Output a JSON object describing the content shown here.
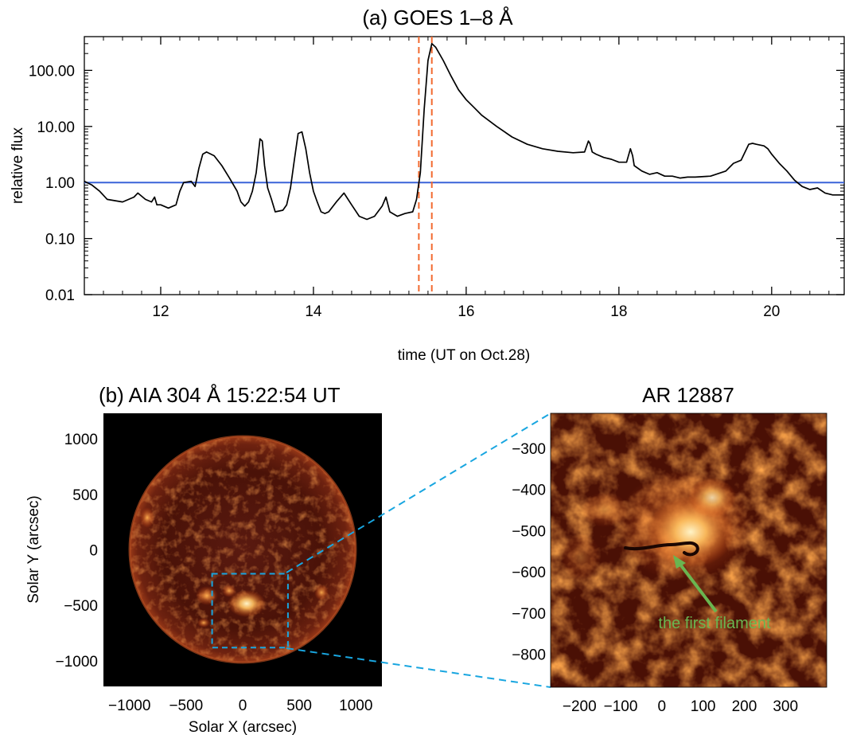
{
  "chart_data": [
    {
      "panel": "a",
      "type": "line",
      "title": "(a)   GOES 1–8 Å",
      "xlabel": "time (UT on Oct.28)",
      "ylabel": "relative flux",
      "y_scale": "log",
      "xlim": [
        11.0,
        20.95
      ],
      "ylim": [
        0.01,
        400
      ],
      "x_ticks": [
        12,
        14,
        16,
        18,
        20
      ],
      "y_ticks": [
        0.01,
        0.1,
        1,
        10,
        100
      ],
      "y_tick_labels": [
        "0.01",
        "0.10",
        "1.00",
        "10.00",
        "100.00"
      ],
      "reference_line": {
        "y": 1.0,
        "color": "#3a63d8"
      },
      "vlines": [
        {
          "x": 15.38,
          "color": "#f26a30",
          "style": "dashed"
        },
        {
          "x": 15.55,
          "color": "#f26a30",
          "style": "dashed"
        }
      ],
      "grid": false,
      "series": [
        {
          "color": "#000000",
          "x": [
            11.0,
            11.1,
            11.2,
            11.3,
            11.5,
            11.65,
            11.7,
            11.8,
            11.88,
            11.92,
            11.95,
            12.0,
            12.1,
            12.2,
            12.25,
            12.3,
            12.4,
            12.45,
            12.5,
            12.55,
            12.6,
            12.7,
            12.8,
            12.9,
            13.0,
            13.05,
            13.1,
            13.15,
            13.2,
            13.25,
            13.3,
            13.33,
            13.36,
            13.4,
            13.45,
            13.5,
            13.6,
            13.65,
            13.7,
            13.75,
            13.8,
            13.85,
            13.9,
            13.95,
            14.0,
            14.05,
            14.1,
            14.15,
            14.2,
            14.3,
            14.4,
            14.5,
            14.6,
            14.7,
            14.8,
            14.9,
            14.95,
            15.0,
            15.1,
            15.2,
            15.3,
            15.35,
            15.4,
            15.45,
            15.5,
            15.55,
            15.6,
            15.7,
            15.8,
            15.9,
            16.0,
            16.1,
            16.2,
            16.4,
            16.6,
            16.8,
            17.0,
            17.2,
            17.4,
            17.55,
            17.6,
            17.62,
            17.65,
            17.7,
            17.8,
            17.9,
            18.0,
            18.1,
            18.15,
            18.18,
            18.2,
            18.3,
            18.4,
            18.5,
            18.6,
            18.7,
            18.8,
            18.9,
            19.0,
            19.2,
            19.4,
            19.5,
            19.6,
            19.7,
            19.75,
            19.8,
            19.9,
            19.95,
            20.0,
            20.1,
            20.2,
            20.3,
            20.4,
            20.5,
            20.6,
            20.7,
            20.8,
            20.95
          ],
          "y": [
            1.05,
            0.9,
            0.7,
            0.5,
            0.45,
            0.55,
            0.65,
            0.5,
            0.45,
            0.55,
            0.4,
            0.4,
            0.35,
            0.4,
            0.7,
            1.0,
            1.05,
            0.85,
            1.8,
            3.2,
            3.5,
            3.0,
            2.0,
            1.2,
            0.7,
            0.45,
            0.38,
            0.45,
            0.7,
            1.5,
            6.0,
            5.5,
            2.0,
            0.8,
            0.5,
            0.3,
            0.32,
            0.4,
            0.8,
            2.5,
            7.5,
            8.0,
            4.0,
            1.5,
            0.7,
            0.45,
            0.3,
            0.28,
            0.3,
            0.45,
            0.65,
            0.4,
            0.25,
            0.22,
            0.25,
            0.38,
            0.55,
            0.3,
            0.25,
            0.28,
            0.3,
            0.5,
            1.5,
            20.0,
            150.0,
            300.0,
            260.0,
            150.0,
            80.0,
            45.0,
            30.0,
            22.0,
            16.0,
            10.0,
            6.5,
            4.8,
            4.0,
            3.6,
            3.4,
            3.5,
            5.5,
            5.0,
            3.5,
            3.2,
            2.8,
            2.6,
            2.3,
            2.3,
            4.0,
            3.0,
            2.0,
            1.6,
            1.4,
            1.5,
            1.3,
            1.3,
            1.2,
            1.25,
            1.25,
            1.3,
            1.6,
            2.2,
            2.5,
            4.8,
            5.0,
            4.8,
            4.5,
            4.0,
            3.2,
            2.2,
            1.6,
            1.1,
            0.85,
            0.75,
            0.8,
            0.65,
            0.6,
            0.6
          ]
        }
      ]
    },
    {
      "panel": "b",
      "type": "image",
      "title": "(b) AIA 304 Å 15:22:54 UT",
      "xlabel": "Solar X (arcsec)",
      "ylabel": "Solar Y (arcsec)",
      "xlim": [
        -1230,
        1230
      ],
      "ylim": [
        -1230,
        1230
      ],
      "x_ticks": [
        -1000,
        -500,
        0,
        500,
        1000
      ],
      "y_ticks": [
        -1000,
        -500,
        0,
        500,
        1000
      ],
      "x_tick_labels": [
        "−1000",
        "−500",
        "0",
        "500",
        "1000"
      ],
      "y_tick_labels": [
        "−1000",
        "−500",
        "0",
        "500",
        "1000"
      ],
      "zoom_box": {
        "x": [
          -270,
          400
        ],
        "y": [
          -880,
          -215
        ],
        "color": "#19a6e0"
      }
    },
    {
      "panel": "c",
      "type": "image",
      "title": "AR 12887",
      "xlim": [
        -270,
        400
      ],
      "ylim": [
        -880,
        -215
      ],
      "x_ticks": [
        -200,
        -100,
        0,
        100,
        200,
        300
      ],
      "y_ticks": [
        -800,
        -700,
        -600,
        -500,
        -400,
        -300
      ],
      "x_tick_labels": [
        "−200",
        "−100",
        "0",
        "100",
        "200",
        "300"
      ],
      "y_tick_labels": [
        "−800",
        "−700",
        "−600",
        "−500",
        "−400",
        "−300"
      ],
      "annotation": {
        "text": "the first filament",
        "color": "#6ab550",
        "arrow_to": [
          25,
          -555
        ]
      }
    }
  ]
}
